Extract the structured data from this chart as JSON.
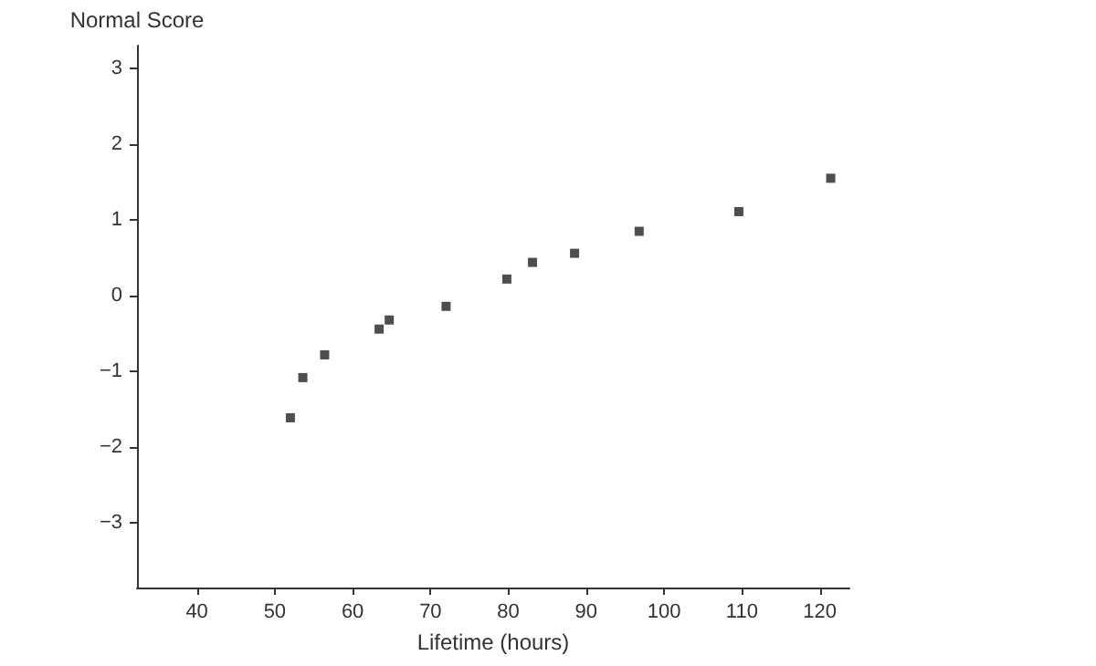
{
  "chart_data": {
    "type": "scatter",
    "xlabel": "Lifetime (hours)",
    "ylabel": "Normal Score",
    "x": [
      52.0,
      53.6,
      56.4,
      63.4,
      64.7,
      72.0,
      79.8,
      83.1,
      88.5,
      96.8,
      109.6,
      121.4
    ],
    "series": [
      {
        "color": "#222222",
        "values": [
          -1.61,
          -1.08,
          -0.78,
          -0.44,
          -0.32,
          -0.14,
          0.22,
          0.44,
          0.56,
          0.85,
          1.11,
          1.55
        ]
      }
    ],
    "xlim": [
      32.3,
      123.8
    ],
    "xticks": [
      40,
      50,
      60,
      70,
      80,
      90,
      100,
      110,
      120
    ],
    "ylim": [
      -3.85,
      3.3
    ],
    "yticks": [
      -3,
      -2,
      -1,
      0,
      1,
      2,
      3
    ],
    "grid": false,
    "marker": "square"
  }
}
